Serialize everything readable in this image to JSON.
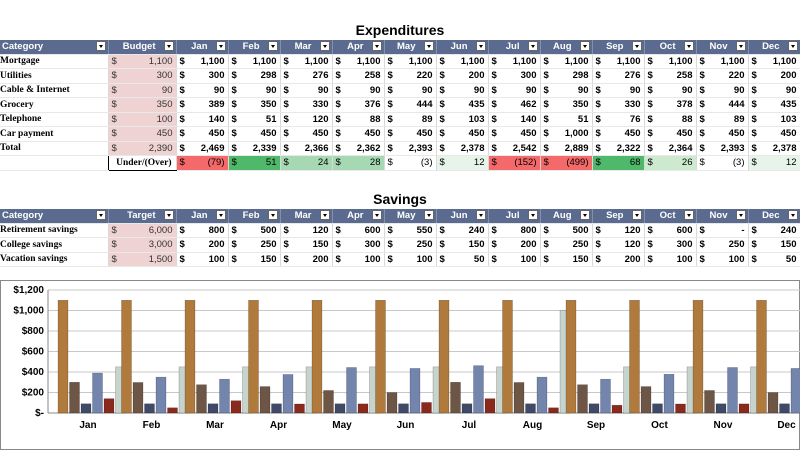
{
  "expenditures": {
    "title": "Expenditures",
    "headers": [
      "Category",
      "Budget",
      "Jan",
      "Feb",
      "Mar",
      "Apr",
      "May",
      "Jun",
      "Jul",
      "Aug",
      "Sep",
      "Oct",
      "Nov",
      "Dec"
    ],
    "rows": [
      {
        "category": "Mortgage",
        "budget": "1,100",
        "months": [
          "1,100",
          "1,100",
          "1,100",
          "1,100",
          "1,100",
          "1,100",
          "1,100",
          "1,100",
          "1,100",
          "1,100",
          "1,100",
          "1,100"
        ]
      },
      {
        "category": "Utilities",
        "budget": "300",
        "months": [
          "300",
          "298",
          "276",
          "258",
          "220",
          "200",
          "300",
          "298",
          "276",
          "258",
          "220",
          "200"
        ]
      },
      {
        "category": "Cable & Internet",
        "budget": "90",
        "months": [
          "90",
          "90",
          "90",
          "90",
          "90",
          "90",
          "90",
          "90",
          "90",
          "90",
          "90",
          "90"
        ]
      },
      {
        "category": "Grocery",
        "budget": "350",
        "months": [
          "389",
          "350",
          "330",
          "376",
          "444",
          "435",
          "462",
          "350",
          "330",
          "378",
          "444",
          "435"
        ]
      },
      {
        "category": "Telephone",
        "budget": "100",
        "months": [
          "140",
          "51",
          "120",
          "88",
          "89",
          "103",
          "140",
          "51",
          "76",
          "88",
          "89",
          "103"
        ]
      },
      {
        "category": "Car payment",
        "budget": "450",
        "months": [
          "450",
          "450",
          "450",
          "450",
          "450",
          "450",
          "450",
          "1,000",
          "450",
          "450",
          "450",
          "450"
        ]
      }
    ],
    "total": {
      "label": "Total",
      "budget": "2,390",
      "months": [
        "2,469",
        "2,339",
        "2,366",
        "2,362",
        "2,393",
        "2,378",
        "2,542",
        "2,889",
        "2,322",
        "2,364",
        "2,393",
        "2,378"
      ]
    },
    "under_over": {
      "label": "Under/(Over)",
      "values": [
        "(79)",
        "51",
        "24",
        "28",
        "(3)",
        "12",
        "(152)",
        "(499)",
        "68",
        "26",
        "(3)",
        "12"
      ],
      "colors": [
        "#f46a6a",
        "#4fb86a",
        "#a6d9b3",
        "#a6d9b3",
        "#ffffff",
        "#e6f4ea",
        "#f46a6a",
        "#f46a6a",
        "#4fb86a",
        "#cdeacf",
        "#ffffff",
        "#e6f4ea"
      ]
    }
  },
  "savings": {
    "title": "Savings",
    "headers": [
      "Category",
      "Target",
      "Jan",
      "Feb",
      "Mar",
      "Apr",
      "May",
      "Jun",
      "Jul",
      "Aug",
      "Sep",
      "Oct",
      "Nov",
      "Dec"
    ],
    "rows": [
      {
        "category": "Retirement savings",
        "target": "6,000",
        "months": [
          "800",
          "500",
          "120",
          "600",
          "550",
          "240",
          "800",
          "500",
          "120",
          "600",
          "-",
          "240"
        ]
      },
      {
        "category": "College savings",
        "target": "3,000",
        "months": [
          "200",
          "250",
          "150",
          "300",
          "250",
          "150",
          "200",
          "250",
          "120",
          "300",
          "250",
          "150"
        ]
      },
      {
        "category": "Vacation savings",
        "target": "1,500",
        "months": [
          "100",
          "150",
          "200",
          "100",
          "100",
          "50",
          "100",
          "150",
          "200",
          "100",
          "100",
          "50"
        ]
      }
    ]
  },
  "chart_data": {
    "type": "bar",
    "categories": [
      "Jan",
      "Feb",
      "Mar",
      "Apr",
      "May",
      "Jun",
      "Jul",
      "Aug",
      "Sep",
      "Oct",
      "Nov",
      "Dec"
    ],
    "series": [
      {
        "name": "Mortgage",
        "color": "#b07a3c",
        "values": [
          1100,
          1100,
          1100,
          1100,
          1100,
          1100,
          1100,
          1100,
          1100,
          1100,
          1100,
          1100
        ]
      },
      {
        "name": "Utilities",
        "color": "#6e5646",
        "values": [
          300,
          298,
          276,
          258,
          220,
          200,
          300,
          298,
          276,
          258,
          220,
          200
        ]
      },
      {
        "name": "Cable & Internet",
        "color": "#3e4a68",
        "values": [
          90,
          90,
          90,
          90,
          90,
          90,
          90,
          90,
          90,
          90,
          90,
          90
        ]
      },
      {
        "name": "Grocery",
        "color": "#7384ad",
        "values": [
          389,
          350,
          330,
          376,
          444,
          435,
          462,
          350,
          330,
          378,
          444,
          435
        ]
      },
      {
        "name": "Telephone",
        "color": "#8a2a1c",
        "values": [
          140,
          51,
          120,
          88,
          89,
          103,
          140,
          51,
          76,
          88,
          89,
          103
        ]
      },
      {
        "name": "Car payment",
        "color": "#c7d3cd",
        "values": [
          450,
          450,
          450,
          450,
          450,
          450,
          450,
          1000,
          450,
          450,
          450,
          450
        ]
      }
    ],
    "ylim": [
      0,
      1200
    ],
    "yticks": [
      "$-",
      "$200",
      "$400",
      "$600",
      "$800",
      "$1,000",
      "$1,200"
    ],
    "grid": true
  }
}
